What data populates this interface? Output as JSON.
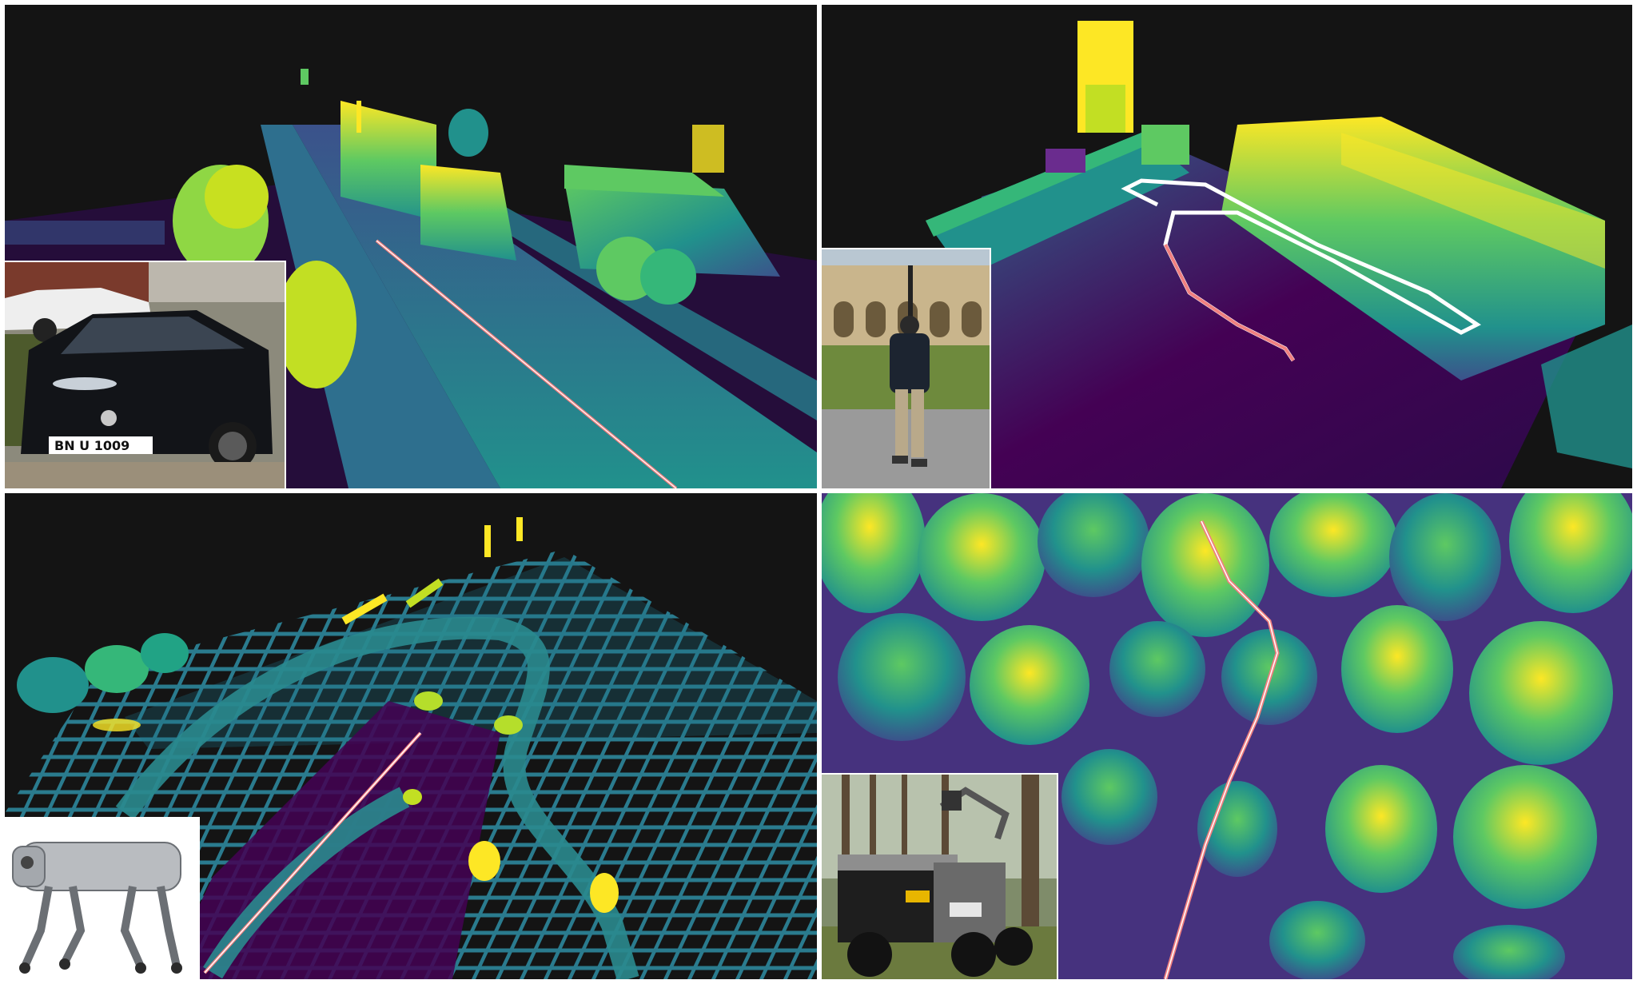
{
  "figure": {
    "colormap": [
      "#440154",
      "#3b528b",
      "#21918c",
      "#5ec962",
      "#fde725"
    ],
    "trajectory_colors": {
      "ground_truth": "#ffffff",
      "estimate": "#f08080"
    },
    "panels": [
      {
        "scene": "urban-street",
        "inset_subject": "car"
      },
      {
        "scene": "college-quad",
        "inset_subject": "handheld-operator"
      },
      {
        "scene": "parking-lot",
        "inset_subject": "quadruped-robot"
      },
      {
        "scene": "forest",
        "inset_subject": "forest-vehicle"
      }
    ],
    "car_plate": "BN U 1009"
  }
}
